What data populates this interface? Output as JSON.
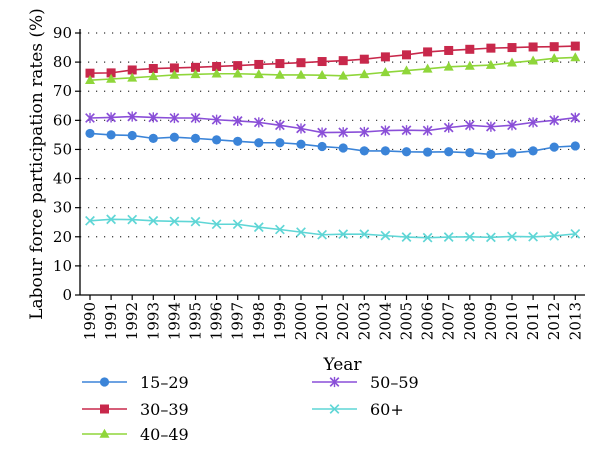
{
  "chart_data": {
    "type": "line",
    "xlabel": "Year",
    "ylabel": "Labour force participation rates (%)",
    "ylim": [
      0,
      90
    ],
    "y_ticks": [
      "0",
      "10",
      "20",
      "30",
      "40",
      "50",
      "60",
      "70",
      "80",
      "90"
    ],
    "x": [
      "1990",
      "1991",
      "1992",
      "1993",
      "1994",
      "1995",
      "1996",
      "1997",
      "1998",
      "1999",
      "2000",
      "2001",
      "2002",
      "2003",
      "2004",
      "2005",
      "2006",
      "2007",
      "2008",
      "2009",
      "2010",
      "2011",
      "2012",
      "2013"
    ],
    "grid": "dotted horizontal",
    "legend_position": "bottom",
    "series": [
      {
        "name": "15–29",
        "color": "#3b84d8",
        "marker": "circle",
        "values": [
          55.5,
          55.0,
          54.8,
          53.8,
          54.2,
          53.8,
          53.3,
          52.8,
          52.3,
          52.3,
          51.8,
          51.0,
          50.5,
          49.5,
          49.5,
          49.2,
          49.1,
          49.2,
          48.9,
          48.3,
          48.8,
          49.5,
          50.8,
          51.2
        ]
      },
      {
        "name": "30–39",
        "color": "#c8284b",
        "marker": "square",
        "values": [
          76.2,
          76.3,
          77.3,
          77.8,
          78.0,
          78.2,
          78.5,
          78.8,
          79.2,
          79.5,
          79.8,
          80.2,
          80.5,
          81.0,
          81.8,
          82.5,
          83.5,
          84.0,
          84.4,
          84.8,
          85.0,
          85.2,
          85.3,
          85.5
        ]
      },
      {
        "name": "40–49",
        "color": "#8fd63a",
        "marker": "triangle",
        "values": [
          73.8,
          74.2,
          74.6,
          75.1,
          75.6,
          75.8,
          76.0,
          76.0,
          75.8,
          75.6,
          75.6,
          75.5,
          75.3,
          75.8,
          76.5,
          77.1,
          77.7,
          78.4,
          78.7,
          79.0,
          79.8,
          80.5,
          81.3,
          81.6
        ]
      },
      {
        "name": "50–59",
        "color": "#8a4fd8",
        "marker": "x",
        "values": [
          60.8,
          61.0,
          61.3,
          61.0,
          60.8,
          60.8,
          60.2,
          59.8,
          59.3,
          58.3,
          57.2,
          55.8,
          55.9,
          56.0,
          56.5,
          56.6,
          56.5,
          57.5,
          58.3,
          57.8,
          58.3,
          59.3,
          60.0,
          60.9
        ]
      },
      {
        "name": "60+",
        "color": "#5fd6d6",
        "marker": "x",
        "values": [
          25.5,
          26.0,
          25.9,
          25.5,
          25.3,
          25.2,
          24.3,
          24.3,
          23.3,
          22.5,
          21.6,
          20.7,
          20.9,
          20.9,
          20.4,
          19.9,
          19.7,
          19.9,
          20.0,
          19.8,
          20.1,
          20.0,
          20.3,
          21.0
        ]
      }
    ]
  }
}
